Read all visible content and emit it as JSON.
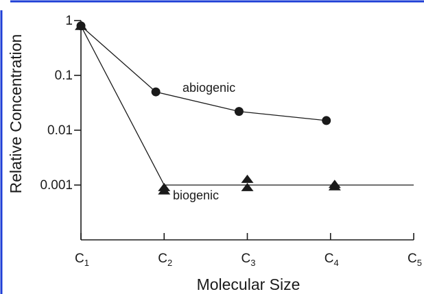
{
  "chart_data": {
    "type": "scatter",
    "title": "",
    "xlabel": "Molecular Size",
    "ylabel": "Relative Concentration",
    "y_scale": "log",
    "ylim": [
      0.0001,
      1
    ],
    "xlim": [
      1,
      5
    ],
    "x_ticks": [
      {
        "base": "C",
        "sub": "1",
        "value": 1
      },
      {
        "base": "C",
        "sub": "2",
        "value": 2
      },
      {
        "base": "C",
        "sub": "3",
        "value": 3
      },
      {
        "base": "C",
        "sub": "4",
        "value": 4
      },
      {
        "base": "C",
        "sub": "5",
        "value": 5
      }
    ],
    "y_ticks": [
      {
        "label": "1",
        "value": 1
      },
      {
        "label": "0.1",
        "value": 0.1
      },
      {
        "label": "0.01",
        "value": 0.01
      },
      {
        "label": "0.001",
        "value": 0.001
      }
    ],
    "series": [
      {
        "name": "abiogenic",
        "marker": "circle",
        "points": [
          {
            "x": 1,
            "y": 0.8
          },
          {
            "x": 1.9,
            "y": 0.05
          },
          {
            "x": 2.9,
            "y": 0.022
          },
          {
            "x": 3.95,
            "y": 0.015
          }
        ],
        "line": [
          [
            1,
            0.8
          ],
          [
            1.9,
            0.05
          ],
          [
            2.9,
            0.022
          ],
          [
            3.95,
            0.015
          ]
        ]
      },
      {
        "name": "biogenic",
        "marker": "triangle",
        "points": [
          {
            "x": 1,
            "y": 0.8
          },
          {
            "x": 2,
            "y": 0.00092
          },
          {
            "x": 2,
            "y": 0.0008
          },
          {
            "x": 3,
            "y": 0.0013
          },
          {
            "x": 3,
            "y": 0.00092
          },
          {
            "x": 4.05,
            "y": 0.00105
          },
          {
            "x": 4.05,
            "y": 0.00095
          }
        ],
        "line": [
          [
            1,
            0.8
          ],
          [
            2,
            0.001
          ],
          [
            5,
            0.001
          ]
        ]
      }
    ],
    "grid": false,
    "legend": "none",
    "colors": {
      "frame": "#1f3fd6",
      "ink": "#1a1a1a"
    }
  }
}
